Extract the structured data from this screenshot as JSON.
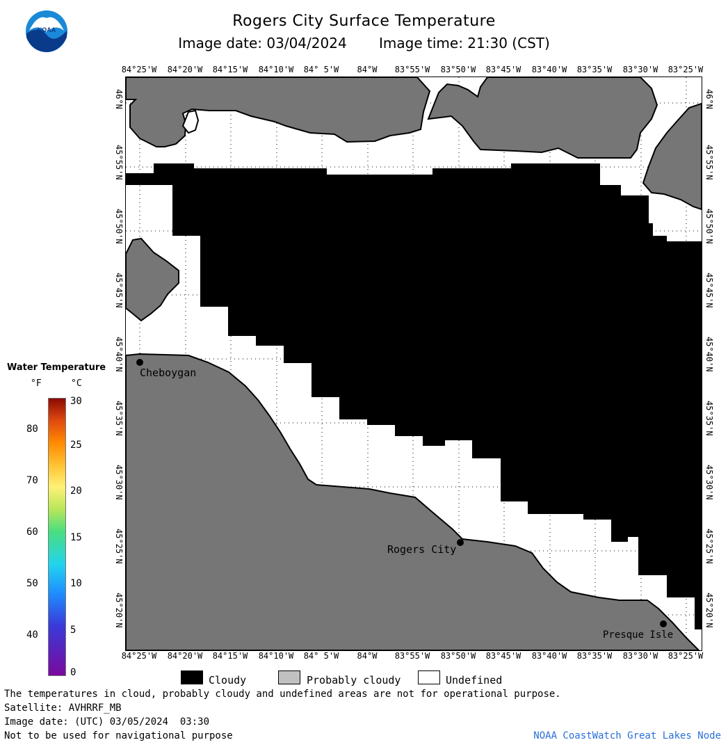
{
  "header": {
    "title": "Rogers City Surface Temperature",
    "image_date": "Image date: 03/04/2024",
    "image_time": "Image time: 21:30 (CST)"
  },
  "logo": {
    "text": "NOAA"
  },
  "axes": {
    "longitudes": [
      "84°25'W",
      "84°20'W",
      "84°15'W",
      "84°10'W",
      "84° 5'W",
      "84°W",
      "83°55'W",
      "83°50'W",
      "83°45'W",
      "83°40'W",
      "83°35'W",
      "83°30'W",
      "83°25'W"
    ],
    "latitudes": [
      "46°N",
      "45°55'N",
      "45°50'N",
      "45°45'N",
      "45°40'N",
      "45°35'N",
      "45°30'N",
      "45°25'N",
      "45°20'N"
    ]
  },
  "places": [
    {
      "name": "Cheboygan"
    },
    {
      "name": "Rogers City"
    },
    {
      "name": "Presque Isle"
    }
  ],
  "colorbar": {
    "title": "Water Temperature",
    "unit_f": "°F",
    "unit_c": "°C",
    "f_ticks": [
      "80",
      "70",
      "60",
      "50",
      "40"
    ],
    "c_ticks": [
      "30",
      "25",
      "20",
      "15",
      "10",
      "5",
      "0"
    ],
    "colors": [
      "#7a0a9e",
      "#3a3ad8",
      "#1e90ff",
      "#22d3ee",
      "#4ade80",
      "#b8e65a",
      "#fff176",
      "#ffc233",
      "#ff8a00",
      "#e04a10",
      "#8b0a00"
    ]
  },
  "legend": {
    "cloudy": "Cloudy",
    "probably_cloudy": "Probably cloudy",
    "undefined": "Undefined",
    "colors": {
      "cloudy": "#000000",
      "probably_cloudy": "#c0c0c0",
      "undefined": "#ffffff",
      "land": "#767676"
    }
  },
  "footer": {
    "note": "The temperatures in cloud, probably cloudy and undefined areas are not for operational purpose.",
    "satellite": "Satellite: AVHRRF_MB",
    "utc_date": "Image date: (UTC) 03/05/2024  03:30",
    "nav": "Not to be used for navigational purpose",
    "credit": "NOAA CoastWatch Great Lakes Node"
  }
}
